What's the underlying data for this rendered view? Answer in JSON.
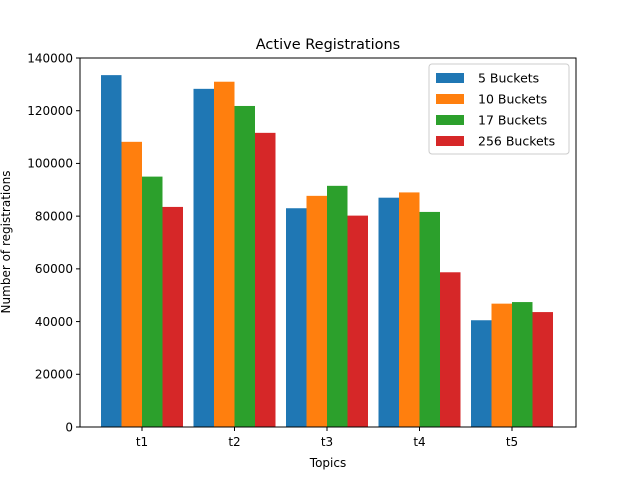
{
  "chart_data": {
    "type": "bar",
    "title": "Active Registrations",
    "xlabel": "Topics",
    "ylabel": "Number of registrations",
    "categories": [
      "t1",
      "t2",
      "t3",
      "t4",
      "t5"
    ],
    "ylim": [
      0,
      140000
    ],
    "yticks": [
      0,
      20000,
      40000,
      60000,
      80000,
      100000,
      120000,
      140000
    ],
    "ytick_labels": [
      "0",
      "20000",
      "40000",
      "60000",
      "80000",
      "100000",
      "120000",
      "140000"
    ],
    "grid": false,
    "legend_position": "top-right",
    "series": [
      {
        "name": "5 Buckets",
        "color": "#1f77b4",
        "values": [
          133500,
          128300,
          83000,
          87000,
          40500
        ]
      },
      {
        "name": "10 Buckets",
        "color": "#ff7f0e",
        "values": [
          108200,
          131000,
          87700,
          89000,
          46800
        ]
      },
      {
        "name": "17 Buckets",
        "color": "#2ca02c",
        "values": [
          95000,
          121800,
          91500,
          81600,
          47400
        ]
      },
      {
        "name": "256 Buckets",
        "color": "#d62728",
        "values": [
          83500,
          111600,
          80200,
          58700,
          43600
        ]
      }
    ]
  }
}
